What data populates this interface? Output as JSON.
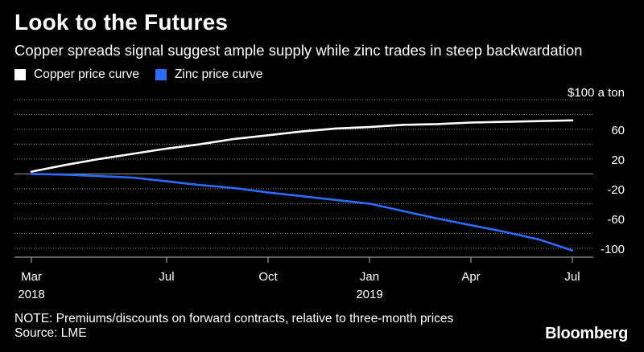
{
  "title": "Look to the Futures",
  "subtitle": "Copper spreads signal suggest ample supply while zinc trades in steep backwardation",
  "legend": [
    {
      "label": "Copper price curve",
      "color": "#ffffff"
    },
    {
      "label": "Zinc price curve",
      "color": "#2d6bff"
    }
  ],
  "notes": {
    "note": "NOTE: Premiums/discounts on forward contracts, relative to three-month prices",
    "source": "Source: LME"
  },
  "brand": "Bloomberg",
  "chart_data": {
    "type": "line",
    "x_unit": "month",
    "x": [
      "2018-03",
      "2018-04",
      "2018-05",
      "2018-06",
      "2018-07",
      "2018-08",
      "2018-09",
      "2018-10",
      "2018-11",
      "2018-12",
      "2019-01",
      "2019-02",
      "2019-03",
      "2019-04",
      "2019-05",
      "2019-06",
      "2019-07"
    ],
    "series": [
      {
        "name": "Copper price curve",
        "color": "#ffffff",
        "values": [
          3,
          12,
          20,
          27,
          34,
          40,
          47,
          52,
          57,
          61,
          63,
          66,
          67,
          69,
          70,
          71,
          72
        ]
      },
      {
        "name": "Zinc price curve",
        "color": "#2d6bff",
        "values": [
          0,
          -1,
          -3,
          -5,
          -10,
          -15,
          -19,
          -25,
          -30,
          -35,
          -40,
          -50,
          -60,
          -69,
          -78,
          -88,
          -103
        ]
      }
    ],
    "y_unit": "$100 a ton",
    "yticks": [
      60,
      20,
      -20,
      -60,
      -100
    ],
    "ylim": [
      -112,
      102
    ],
    "xticks": [
      {
        "x": "2018-03",
        "label": "Mar",
        "sublabel": "2018"
      },
      {
        "x": "2018-07",
        "label": "Jul",
        "sublabel": ""
      },
      {
        "x": "2018-10",
        "label": "Oct",
        "sublabel": ""
      },
      {
        "x": "2019-01",
        "label": "Jan",
        "sublabel": "2019"
      },
      {
        "x": "2019-04",
        "label": "Apr",
        "sublabel": ""
      },
      {
        "x": "2019-07",
        "label": "Jul",
        "sublabel": ""
      }
    ],
    "grid": true,
    "zero_line": true,
    "legend_position": "top-left"
  }
}
